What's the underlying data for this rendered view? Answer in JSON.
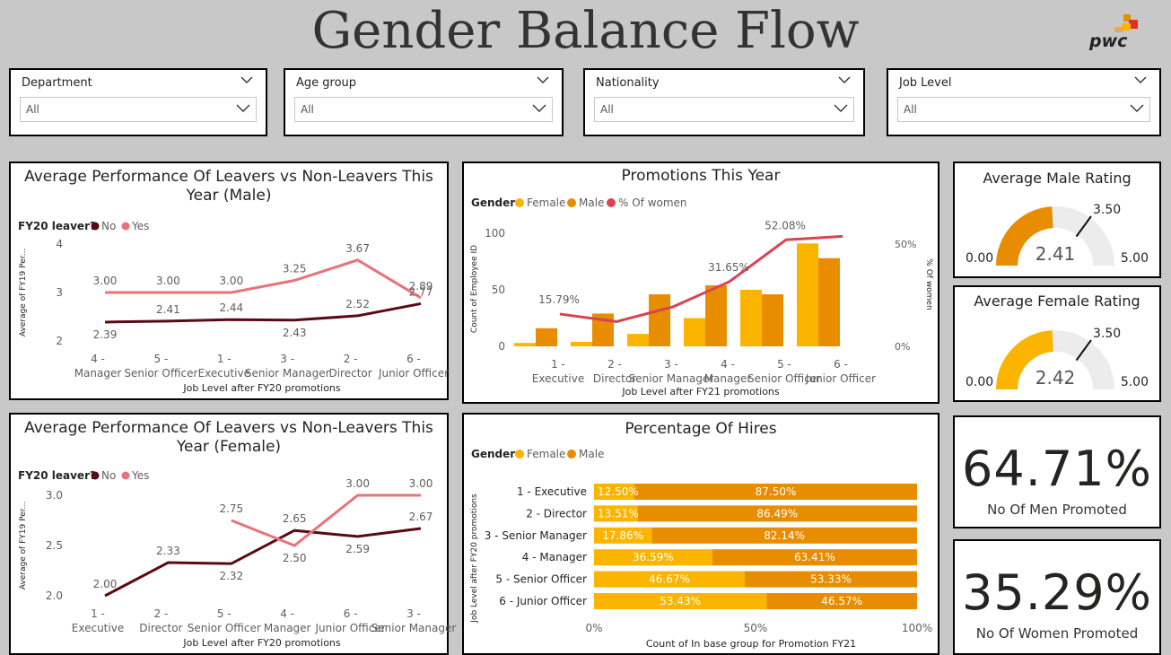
{
  "page_title": "Gender Balance Flow",
  "logo_text": "pwc",
  "slicers": [
    {
      "label": "Department",
      "value": "All"
    },
    {
      "label": "Age group",
      "value": "All"
    },
    {
      "label": "Nationality",
      "value": "All"
    },
    {
      "label": "Job Level",
      "value": "All"
    }
  ],
  "colors": {
    "dark": "#5a0a14",
    "pink": "#e8737a",
    "female": "#fbb500",
    "male": "#e88c00",
    "pct": "#d94452",
    "gauge_bg": "#ececec"
  },
  "gauges": [
    {
      "title": "Average Male Rating",
      "value": "2.41",
      "min": "0.00",
      "max": "5.00",
      "target": "3.50",
      "color": "#e88c00",
      "num": 2.41,
      "max_num": 5,
      "target_num": 3.5
    },
    {
      "title": "Average Female Rating",
      "value": "2.42",
      "min": "0.00",
      "max": "5.00",
      "target": "3.50",
      "color": "#fbb500",
      "num": 2.42,
      "max_num": 5,
      "target_num": 3.5
    }
  ],
  "kpis": [
    {
      "value": "64.71%",
      "label": "No Of Men Promoted"
    },
    {
      "value": "35.29%",
      "label": "No Of Women Promoted"
    }
  ],
  "chart_data": [
    {
      "type": "line",
      "title": "Average Performance Of Leavers vs Non-Leavers This Year (Male)",
      "legend_title": "FY20 leaver?",
      "xlabel": "Job Level after FY20 promotions",
      "ylabel": "Average of FY19 Per...",
      "ylim": [
        2,
        4
      ],
      "yticks": [
        "2",
        "3",
        "4"
      ],
      "categories": [
        "4 - Manager",
        "5 - Senior Officer",
        "1 - Executive",
        "3 - Senior Manager",
        "2 - Director",
        "6 - Junior Officer"
      ],
      "series": [
        {
          "name": "No",
          "values": [
            2.39,
            2.41,
            2.44,
            2.43,
            2.52,
            2.77
          ]
        },
        {
          "name": "Yes",
          "values": [
            3.0,
            3.0,
            3.0,
            3.25,
            3.67,
            2.89
          ]
        }
      ],
      "labels": {
        "No": [
          "2.39",
          "2.41",
          "2.44",
          "2.43",
          "2.52",
          "2.77"
        ],
        "Yes": [
          "3.00",
          "3.00",
          "3.00",
          "3.25",
          "3.67",
          "2.89"
        ]
      }
    },
    {
      "type": "line",
      "title": "Average Performance Of Leavers vs Non-Leavers This Year (Female)",
      "legend_title": "FY20 leaver?",
      "xlabel": "Job Level after FY20 promotions",
      "ylabel": "Average of FY19 Per...",
      "ylim": [
        2.0,
        3.0
      ],
      "yticks": [
        "2.0",
        "2.5",
        "3.0"
      ],
      "categories": [
        "1 - Executive",
        "2 - Director",
        "5 - Senior Officer",
        "4 - Manager",
        "6 - Junior Officer",
        "3 - Senior Manager"
      ],
      "series": [
        {
          "name": "No",
          "values": [
            2.0,
            2.33,
            2.32,
            2.65,
            2.59,
            2.67
          ]
        },
        {
          "name": "Yes",
          "values": [
            null,
            null,
            2.75,
            2.5,
            3.0,
            3.0
          ]
        }
      ],
      "labels": {
        "No": [
          "2.00",
          "2.33",
          "2.32",
          "2.65",
          "2.59",
          "2.67"
        ],
        "Yes": [
          "",
          "",
          "2.75",
          "2.50",
          "3.00",
          "3.00"
        ]
      }
    },
    {
      "type": "bar",
      "title": "Promotions This Year",
      "legend_title": "Gender",
      "xlabel": "Job Level after FY21 promotions",
      "ylabel": "Count of Employee ID",
      "y2label": "% Of women",
      "ylim": [
        0,
        100
      ],
      "yticks": [
        "0",
        "50",
        "100"
      ],
      "y2ticks": [
        "0%",
        "50%"
      ],
      "categories": [
        "1 - Executive",
        "2 - Director",
        "3 - Senior Manager",
        "4 - Manager",
        "5 - Senior Officer",
        "6 - Junior Officer"
      ],
      "series": [
        {
          "name": "Female",
          "values": [
            3,
            4,
            11,
            25,
            50,
            91
          ]
        },
        {
          "name": "Male",
          "values": [
            16,
            29,
            46,
            54,
            46,
            78
          ]
        },
        {
          "name": "% Of women",
          "values": [
            15.79,
            12.1,
            19.3,
            31.65,
            52.08,
            53.8
          ]
        }
      ],
      "pct_labels": [
        "15.79%",
        "",
        "",
        "31.65%",
        "52.08%",
        ""
      ]
    },
    {
      "type": "bar",
      "orientation": "horizontal-stacked-100",
      "title": "Percentage Of Hires",
      "legend_title": "Gender",
      "xlabel": "Count of In base group for Promotion FY21",
      "ylabel": "Job Level after FY20 promotions",
      "xticks": [
        "0%",
        "50%",
        "100%"
      ],
      "categories": [
        "1 - Executive",
        "2 - Director",
        "3 - Senior Manager",
        "4 - Manager",
        "5 - Senior Officer",
        "6 - Junior Officer"
      ],
      "series": [
        {
          "name": "Female",
          "values": [
            12.5,
            13.51,
            17.86,
            36.59,
            46.67,
            53.43
          ]
        },
        {
          "name": "Male",
          "values": [
            87.5,
            86.49,
            82.14,
            63.41,
            53.33,
            46.57
          ]
        }
      ],
      "labels": {
        "Female": [
          "12.50%",
          "13.51%",
          "17.86%",
          "36.59%",
          "46.67%",
          "53.43%"
        ],
        "Male": [
          "87.50%",
          "86.49%",
          "82.14%",
          "63.41%",
          "53.33%",
          "46.57%"
        ]
      }
    }
  ]
}
